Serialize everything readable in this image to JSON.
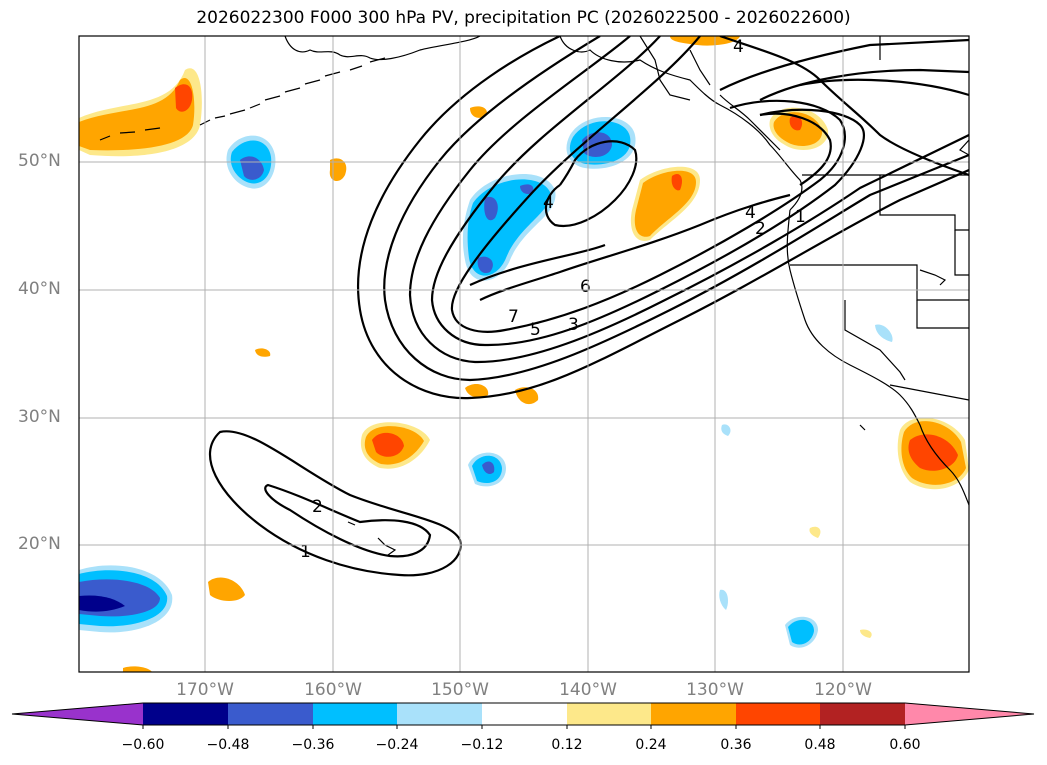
{
  "title": "2026022300 F000 300 hPa PV, precipitation PC (2026022500 - 2026022600)",
  "map": {
    "lat_labels": [
      "50°N",
      "40°N",
      "30°N",
      "20°N"
    ],
    "lon_labels": [
      "170°W",
      "160°W",
      "150°W",
      "140°W",
      "130°W",
      "120°W"
    ],
    "contour_labels": [
      "4",
      "4",
      "6",
      "7",
      "5",
      "3",
      "4",
      "2",
      "1",
      "2",
      "1"
    ]
  },
  "colorbar": {
    "ticks": [
      "−0.60",
      "−0.48",
      "−0.36",
      "−0.24",
      "−0.12",
      "0.12",
      "0.24",
      "0.36",
      "0.48",
      "0.60"
    ],
    "colors": [
      "#9932cc",
      "#00008b",
      "#3a5bcd",
      "#00bfff",
      "#a9e1fa",
      "#ffffff",
      "#fde88a",
      "#ffa500",
      "#ff4500",
      "#b22222",
      "#ff88aa"
    ]
  }
}
